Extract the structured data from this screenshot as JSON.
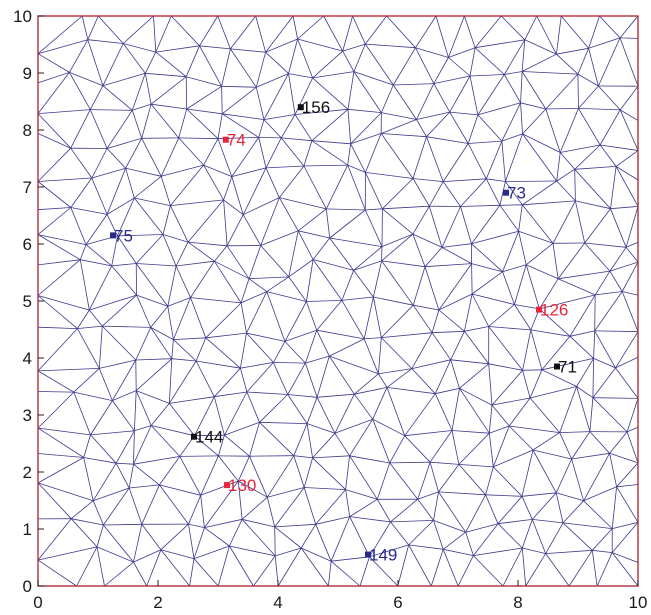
{
  "chart_data": {
    "type": "scatter",
    "title": "",
    "xlabel": "",
    "ylabel": "",
    "xlim": [
      0,
      10
    ],
    "ylim": [
      0,
      10
    ],
    "x_ticks": [
      "0",
      "2",
      "4",
      "6",
      "8",
      "10"
    ],
    "y_ticks": [
      "0",
      "1",
      "2",
      "3",
      "4",
      "5",
      "6",
      "7",
      "8",
      "9",
      "10"
    ],
    "grid": false,
    "colors": {
      "frame": "#b0303a",
      "mesh": "#3a3a8c",
      "highlight": "#e8253a",
      "normal": "#111111",
      "blue": "#2a2a8c"
    },
    "labeled_nodes": [
      {
        "id": "156",
        "x": 4.38,
        "y": 8.4,
        "color": "#111111"
      },
      {
        "id": "74",
        "x": 3.13,
        "y": 7.83,
        "color": "#e8253a"
      },
      {
        "id": "73",
        "x": 7.8,
        "y": 6.9,
        "color": "#2a2a8c"
      },
      {
        "id": "75",
        "x": 1.25,
        "y": 6.15,
        "color": "#2a2a8c"
      },
      {
        "id": "126",
        "x": 8.35,
        "y": 4.85,
        "color": "#e8253a"
      },
      {
        "id": "71",
        "x": 8.65,
        "y": 3.85,
        "color": "#111111"
      },
      {
        "id": "144",
        "x": 2.6,
        "y": 2.62,
        "color": "#111111"
      },
      {
        "id": "130",
        "x": 3.15,
        "y": 1.77,
        "color": "#e8253a"
      },
      {
        "id": "149",
        "x": 5.5,
        "y": 0.55,
        "color": "#2a2a8c"
      }
    ]
  }
}
